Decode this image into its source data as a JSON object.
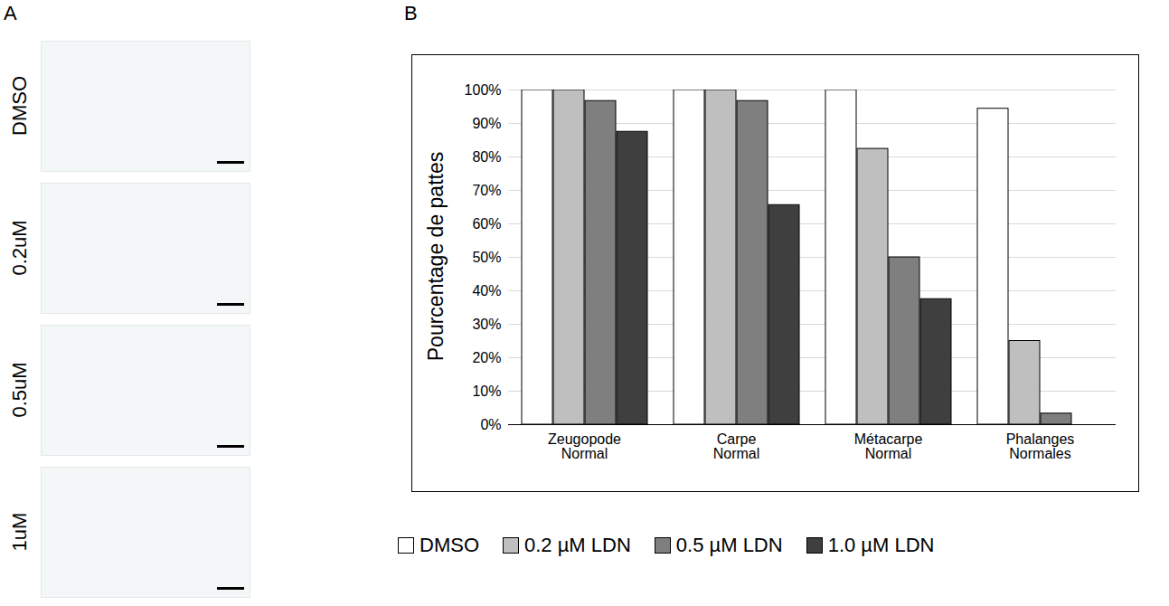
{
  "panels": {
    "A": {
      "label": "A",
      "row_labels": [
        "DMSO",
        "0.2uM",
        "0.5uM",
        "1uM"
      ]
    },
    "B": {
      "label": "B"
    }
  },
  "chart_data": {
    "type": "bar",
    "ylabel": "Pourcentage de pattes",
    "categories": [
      "Zeugopode Normal",
      "Carpe Normal",
      "Métacarpe Normal",
      "Phalanges Normales"
    ],
    "series": [
      {
        "name": "DMSO",
        "color": "#ffffff",
        "values": [
          100,
          100,
          100,
          94.4
        ]
      },
      {
        "name": "0.2 µM LDN",
        "color": "#bfbfbf",
        "values": [
          100,
          100,
          82.4,
          25
        ]
      },
      {
        "name": "0.5 µM LDN",
        "color": "#7f7f7f",
        "values": [
          96.7,
          96.7,
          50,
          3.3
        ]
      },
      {
        "name": "1.0 µM LDN",
        "color": "#3f3f3f",
        "values": [
          87.5,
          65.6,
          37.5,
          0
        ]
      }
    ],
    "ylim": [
      0,
      100
    ],
    "yticks": [
      {
        "value": 0,
        "label": "0%"
      },
      {
        "value": 10,
        "label": "10%"
      },
      {
        "value": 20,
        "label": "20%"
      },
      {
        "value": 30,
        "label": "30%"
      },
      {
        "value": 40,
        "label": "40%"
      },
      {
        "value": 50,
        "label": "50%"
      },
      {
        "value": 60,
        "label": "60%"
      },
      {
        "value": 70,
        "label": "70%"
      },
      {
        "value": 80,
        "label": "80%"
      },
      {
        "value": 90,
        "label": "90%"
      },
      {
        "value": 100,
        "label": "100%"
      }
    ],
    "grid": true,
    "legend": "bottom"
  }
}
